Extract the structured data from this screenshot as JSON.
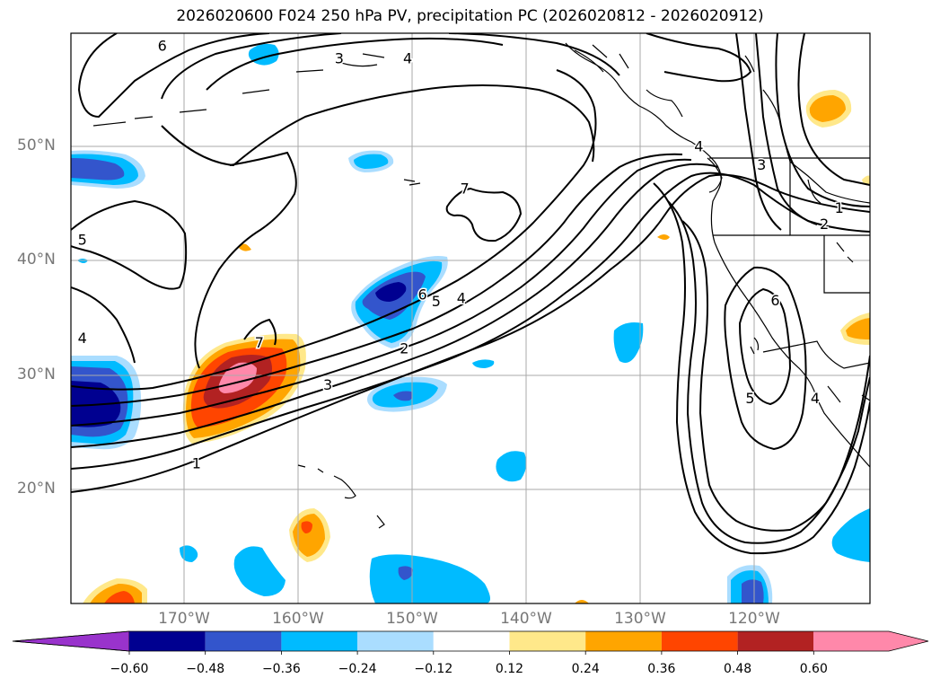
{
  "title": "2026020600 F024 250 hPa PV, precipitation PC (2026020812 - 2026020912)",
  "lat_labels": [
    "50°N",
    "40°N",
    "30°N",
    "20°N"
  ],
  "lon_labels": [
    "170°W",
    "160°W",
    "150°W",
    "140°W",
    "130°W",
    "120°W"
  ],
  "contour_labels": [
    {
      "text": "6",
      "lon": -172.0,
      "lat": 58.8
    },
    {
      "text": "3",
      "lon": -156.5,
      "lat": 57.7
    },
    {
      "text": "4",
      "lon": -150.5,
      "lat": 57.7
    },
    {
      "text": "5",
      "lon": -179.0,
      "lat": 41.8
    },
    {
      "text": "7",
      "lon": -145.5,
      "lat": 46.3
    },
    {
      "text": "4",
      "lon": -179.0,
      "lat": 33.2
    },
    {
      "text": "7",
      "lon": -163.5,
      "lat": 32.8
    },
    {
      "text": "3",
      "lon": -157.5,
      "lat": 29.1
    },
    {
      "text": "1",
      "lon": -169.0,
      "lat": 22.2
    },
    {
      "text": "6",
      "lon": -149.2,
      "lat": 37.0
    },
    {
      "text": "5",
      "lon": -148.0,
      "lat": 36.4
    },
    {
      "text": "4",
      "lon": -145.8,
      "lat": 36.7
    },
    {
      "text": "2",
      "lon": -150.8,
      "lat": 32.3
    },
    {
      "text": "4",
      "lon": -125.0,
      "lat": 50.0
    },
    {
      "text": "3",
      "lon": -119.5,
      "lat": 48.4
    },
    {
      "text": "1",
      "lon": -112.7,
      "lat": 44.6
    },
    {
      "text": "2",
      "lon": -114.0,
      "lat": 43.2
    },
    {
      "text": "6",
      "lon": -118.3,
      "lat": 36.5
    },
    {
      "text": "5",
      "lon": -120.5,
      "lat": 27.9
    },
    {
      "text": "4",
      "lon": -114.8,
      "lat": 27.9
    }
  ],
  "colorbar": {
    "ticks": [
      "−0.60",
      "−0.48",
      "−0.36",
      "−0.24",
      "−0.12",
      "0.12",
      "0.24",
      "0.36",
      "0.48",
      "0.60"
    ],
    "colors": [
      "#9933cc",
      "#000090",
      "#3355cc",
      "#00bbff",
      "#aaddff",
      "#ffffff",
      "#ffe88a",
      "#ffa500",
      "#ff4500",
      "#b22222",
      "#ff88aa",
      "#ff88aa"
    ]
  },
  "colors": {
    "neg_light": "#aaddff",
    "neg_mid": "#00bbff",
    "neg_strong": "#3355cc",
    "neg_max": "#000090",
    "pos_light": "#ffe88a",
    "pos_mid": "#ffa500",
    "pos_strong": "#ff4500",
    "pos_max": "#b22222",
    "pos_peak": "#ff88aa",
    "grid": "#aaaaaa",
    "axis_label": "#777777"
  }
}
